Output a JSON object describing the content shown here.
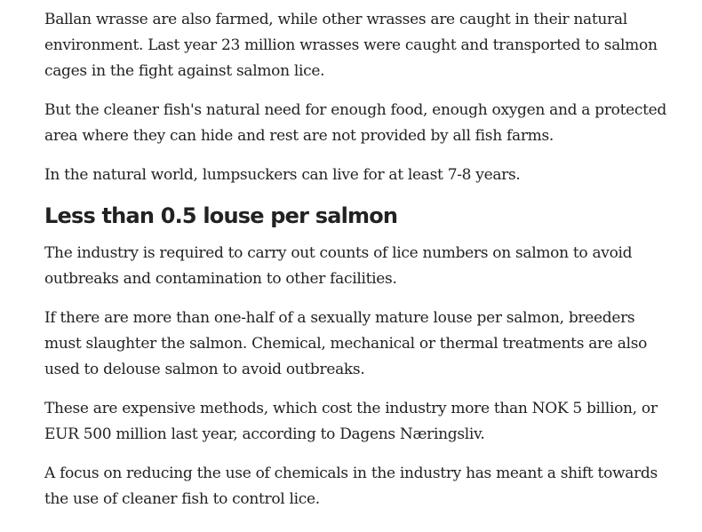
{
  "paragraphs_top": [
    "Ballan wrasse are also farmed, while other wrasses are caught in their natural environment. Last year 23 million wrasses were caught and transported to salmon cages in the fight against salmon lice.",
    "But the cleaner fish's natural need for enough food, enough oxygen and a protected area where they can hide and rest are not provided by all fish farms.",
    "In the natural world, lumpsuckers can live for at least 7-8 years."
  ],
  "heading": "Less than 0.5 louse per salmon",
  "paragraphs_bottom": [
    "The industry is required to carry out counts of lice numbers on salmon to avoid outbreaks and contamination to other facilities.",
    "If there are more than one-half of a sexually mature louse per salmon, breeders must slaughter the salmon. Chemical, mechanical or thermal treatments are also used to delouse salmon to avoid outbreaks.",
    "These are expensive methods, which cost the industry more than NOK 5 billion, or EUR 500 million last year, according to Dagens Næringsliv.",
    "A focus on reducing the use of chemicals in the industry has meant a shift towards the use of cleaner fish to control lice."
  ]
}
